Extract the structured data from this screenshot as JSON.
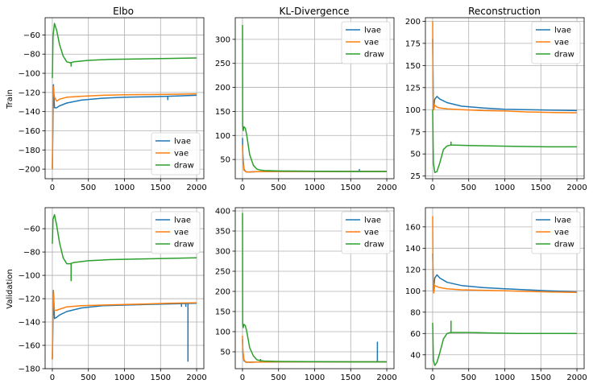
{
  "figure": {
    "column_titles": [
      "Elbo",
      "KL-Divergence",
      "Reconstruction"
    ],
    "row_labels": [
      "Train",
      "Validation"
    ]
  },
  "colors": {
    "lvae": "#1f77b4",
    "vae": "#ff7f0e",
    "draw": "#2ca02c"
  },
  "chart_data": [
    {
      "type": "line",
      "title": "Elbo",
      "ylabel": "Train",
      "xlabel": "",
      "xlim": [
        -100,
        2100
      ],
      "ylim": [
        -210,
        -42
      ],
      "xticks": [
        0,
        500,
        1000,
        1500,
        2000
      ],
      "yticks": [
        -200,
        -180,
        -160,
        -140,
        -120,
        -100,
        -80,
        -60
      ],
      "grid": true,
      "legend": "lower right",
      "series": [
        {
          "name": "lvae",
          "x": [
            0,
            15,
            30,
            60,
            100,
            200,
            400,
            700,
            1000,
            1300,
            1600,
            2000
          ],
          "y": [
            -200,
            -112,
            -136,
            -136,
            -134,
            -131,
            -128,
            -126,
            -125,
            -124.5,
            -124,
            -123
          ],
          "spikes": [
            [
              1600,
              -128
            ]
          ]
        },
        {
          "name": "vae",
          "x": [
            0,
            10,
            30,
            60,
            100,
            200,
            400,
            700,
            1000,
            1300,
            1600,
            2000
          ],
          "y": [
            -200,
            -113,
            -125,
            -129,
            -127,
            -125,
            -124,
            -123,
            -122.5,
            -122.2,
            -122,
            -121.5
          ]
        },
        {
          "name": "draw",
          "x": [
            0,
            10,
            30,
            60,
            100,
            150,
            200,
            250,
            300,
            500,
            800,
            1200,
            1600,
            2000
          ],
          "y": [
            -105,
            -62,
            -48,
            -55,
            -70,
            -82,
            -88,
            -89,
            -88,
            -86.5,
            -85.5,
            -85,
            -84.5,
            -84
          ],
          "spikes": [
            [
              260,
              -93
            ]
          ]
        }
      ]
    },
    {
      "type": "line",
      "title": "KL-Divergence",
      "ylabel": "",
      "xlabel": "",
      "xlim": [
        -100,
        2100
      ],
      "ylim": [
        10,
        345
      ],
      "xticks": [
        0,
        500,
        1000,
        1500,
        2000
      ],
      "yticks": [
        50,
        100,
        150,
        200,
        250,
        300
      ],
      "grid": true,
      "legend": "upper right",
      "series": [
        {
          "name": "lvae",
          "x": [
            0,
            5,
            20,
            50,
            100,
            200,
            500,
            1000,
            1500,
            2000
          ],
          "y": [
            95,
            60,
            30,
            24,
            24,
            24.5,
            25,
            25,
            25,
            25
          ],
          "spikes": [
            [
              1620,
              30
            ]
          ]
        },
        {
          "name": "vae",
          "x": [
            0,
            5,
            20,
            50,
            100,
            200,
            500,
            1000,
            1500,
            2000
          ],
          "y": [
            80,
            50,
            28,
            24,
            24,
            24.5,
            25,
            25,
            25,
            25
          ]
        },
        {
          "name": "draw",
          "x": [
            0,
            3,
            10,
            20,
            40,
            60,
            80,
            100,
            150,
            200,
            250,
            300,
            500,
            1000,
            1500,
            2000
          ],
          "y": [
            330,
            120,
            110,
            118,
            115,
            100,
            80,
            60,
            38,
            30,
            28,
            27,
            26,
            25.5,
            25,
            25
          ]
        }
      ]
    },
    {
      "type": "line",
      "title": "Reconstruction",
      "ylabel": "",
      "xlabel": "",
      "xlim": [
        -100,
        2100
      ],
      "ylim": [
        22,
        204
      ],
      "xticks": [
        0,
        500,
        1000,
        1500,
        2000
      ],
      "yticks": [
        25,
        50,
        75,
        100,
        125,
        150,
        175,
        200
      ],
      "grid": true,
      "legend": "upper right",
      "series": [
        {
          "name": "lvae",
          "x": [
            0,
            10,
            30,
            60,
            100,
            200,
            400,
            700,
            1000,
            1300,
            1600,
            2000
          ],
          "y": [
            180,
            100,
            112,
            115,
            112,
            108,
            104,
            102,
            100.5,
            100,
            99.5,
            99
          ]
        },
        {
          "name": "vae",
          "x": [
            0,
            5,
            15,
            30,
            60,
            100,
            200,
            400,
            700,
            1000,
            1300,
            1600,
            2000
          ],
          "y": [
            200,
            120,
            100,
            105,
            103,
            102,
            101,
            100,
            99,
            98.5,
            97.5,
            97,
            96.5
          ]
        },
        {
          "name": "draw",
          "x": [
            0,
            10,
            30,
            60,
            100,
            150,
            200,
            250,
            300,
            500,
            800,
            1200,
            1600,
            2000
          ],
          "y": [
            100,
            40,
            29,
            30,
            40,
            55,
            59,
            60,
            60,
            59.5,
            59,
            58.5,
            58,
            58
          ],
          "spikes": [
            [
              255,
              64
            ]
          ]
        }
      ]
    },
    {
      "type": "line",
      "title": "",
      "ylabel": "Validation",
      "xlabel": "",
      "xlim": [
        -100,
        2100
      ],
      "ylim": [
        -180,
        -42
      ],
      "xticks": [
        0,
        500,
        1000,
        1500,
        2000
      ],
      "yticks": [
        -180,
        -160,
        -140,
        -120,
        -100,
        -80,
        -60
      ],
      "grid": true,
      "legend": "upper right",
      "series": [
        {
          "name": "lvae",
          "x": [
            0,
            15,
            30,
            60,
            100,
            200,
            400,
            700,
            1000,
            1300,
            1600,
            2000
          ],
          "y": [
            -172,
            -113,
            -137,
            -136,
            -134,
            -131,
            -128,
            -126,
            -125.5,
            -125,
            -124.5,
            -124
          ],
          "spikes": [
            [
              1880,
              -174
            ],
            [
              1850,
              -127
            ],
            [
              1790,
              -127
            ]
          ]
        },
        {
          "name": "vae",
          "x": [
            0,
            10,
            30,
            60,
            100,
            200,
            400,
            700,
            1000,
            1300,
            1600,
            2000
          ],
          "y": [
            -172,
            -113,
            -130,
            -130,
            -129,
            -127,
            -126,
            -125.5,
            -125,
            -124.5,
            -124,
            -123.5
          ]
        },
        {
          "name": "draw",
          "x": [
            0,
            10,
            30,
            60,
            100,
            150,
            200,
            250,
            300,
            500,
            800,
            1200,
            1600,
            2000
          ],
          "y": [
            -73,
            -52,
            -48,
            -57,
            -72,
            -85,
            -90,
            -90,
            -89,
            -87.5,
            -86.5,
            -86,
            -85.5,
            -85
          ],
          "spikes": [
            [
              260,
              -105
            ]
          ]
        }
      ]
    },
    {
      "type": "line",
      "title": "",
      "ylabel": "",
      "xlabel": "",
      "xlim": [
        -100,
        2100
      ],
      "ylim": [
        8,
        408
      ],
      "xticks": [
        0,
        500,
        1000,
        1500,
        2000
      ],
      "yticks": [
        50,
        100,
        150,
        200,
        250,
        300,
        350,
        400
      ],
      "grid": true,
      "legend": "upper right",
      "series": [
        {
          "name": "lvae",
          "x": [
            0,
            5,
            20,
            50,
            100,
            200,
            500,
            1000,
            1500,
            2000
          ],
          "y": [
            80,
            50,
            28,
            24,
            24,
            24.5,
            25,
            25,
            25,
            25
          ],
          "spikes": [
            [
              1870,
              75
            ],
            [
              250,
              32
            ]
          ]
        },
        {
          "name": "vae",
          "x": [
            0,
            5,
            20,
            50,
            100,
            200,
            500,
            1000,
            1500,
            2000
          ],
          "y": [
            90,
            55,
            30,
            24,
            24,
            24.5,
            25,
            25,
            25,
            25
          ]
        },
        {
          "name": "draw",
          "x": [
            0,
            3,
            10,
            20,
            40,
            60,
            80,
            100,
            150,
            200,
            250,
            300,
            500,
            1000,
            1500,
            2000
          ],
          "y": [
            395,
            120,
            110,
            118,
            115,
            100,
            80,
            60,
            40,
            30,
            28,
            27,
            26,
            25.5,
            25,
            25
          ]
        }
      ]
    },
    {
      "type": "line",
      "title": "",
      "ylabel": "",
      "xlabel": "",
      "xlim": [
        -100,
        2100
      ],
      "ylim": [
        27,
        178
      ],
      "xticks": [
        0,
        500,
        1000,
        1500,
        2000
      ],
      "yticks": [
        40,
        60,
        80,
        100,
        120,
        140,
        160
      ],
      "grid": true,
      "legend": "upper right",
      "series": [
        {
          "name": "lvae",
          "x": [
            0,
            10,
            30,
            60,
            100,
            200,
            400,
            700,
            1000,
            1300,
            1600,
            2000
          ],
          "y": [
            135,
            100,
            112,
            115,
            112,
            108,
            105,
            103,
            102,
            101,
            100,
            99
          ]
        },
        {
          "name": "vae",
          "x": [
            0,
            5,
            15,
            30,
            60,
            100,
            200,
            400,
            700,
            1000,
            1300,
            1600,
            2000
          ],
          "y": [
            170,
            120,
            98,
            105,
            104,
            103,
            102,
            101,
            100.5,
            100,
            99.5,
            99,
            98.5
          ]
        },
        {
          "name": "draw",
          "x": [
            0,
            10,
            30,
            60,
            100,
            150,
            200,
            250,
            300,
            500,
            800,
            1200,
            1600,
            2000
          ],
          "y": [
            70,
            35,
            30,
            33,
            42,
            55,
            60,
            61,
            61,
            61,
            60.5,
            60,
            60,
            60
          ],
          "spikes": [
            [
              255,
              72
            ]
          ]
        }
      ]
    }
  ]
}
